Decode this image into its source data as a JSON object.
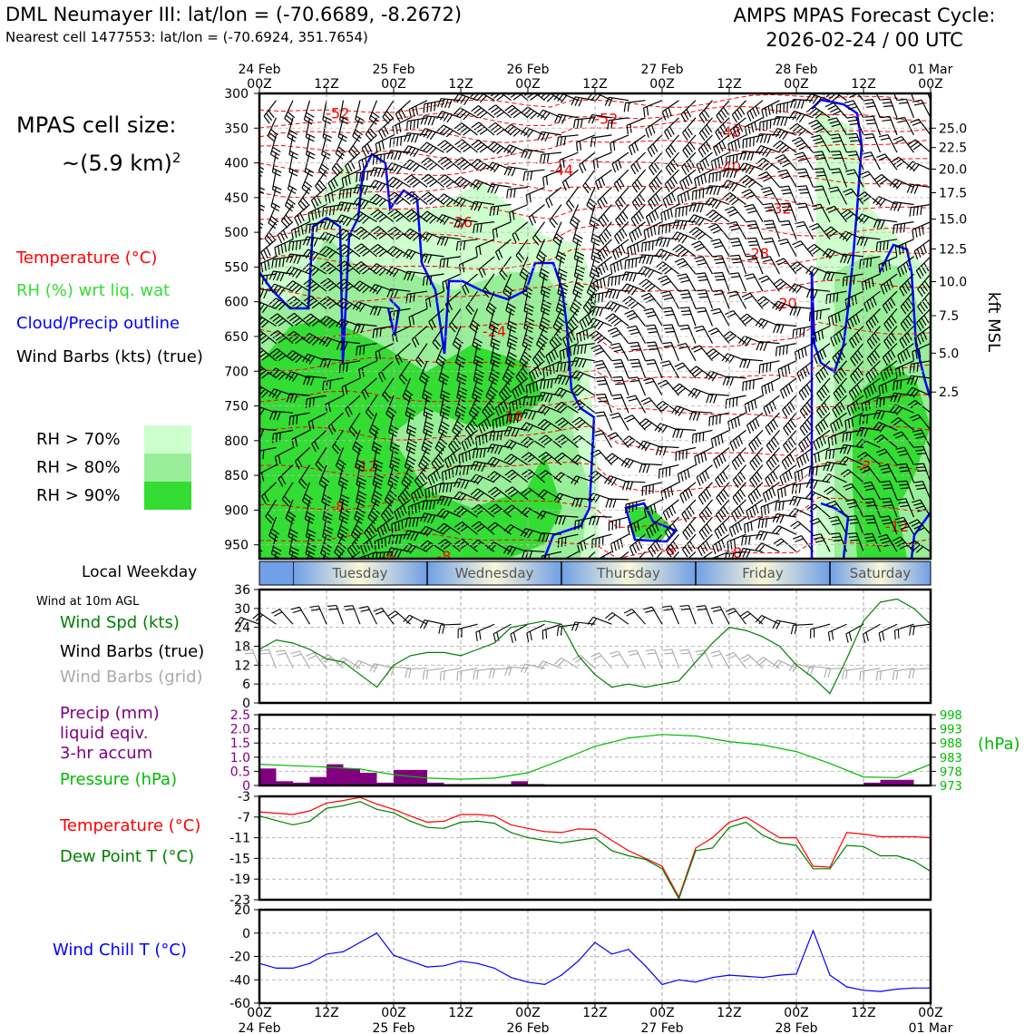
{
  "header": {
    "title_left": "DML Neumayer III: lat/lon = (-70.6689, -8.2672)",
    "subtitle_left": "Nearest cell 1477553: lat/lon = (-70.6924, 351.7654)",
    "title_right_line1": "AMPS MPAS Forecast Cycle:",
    "title_right_line2": "2026-02-24 / 00 UTC"
  },
  "cell_size": {
    "line1": "MPAS cell size:",
    "line2": "~(5.9 km)",
    "sup": "2"
  },
  "legend": {
    "temperature": "Temperature (°C)",
    "rh": "RH (%) wrt liq. wat",
    "cloud": "Cloud/Precip outline",
    "wind": "Wind Barbs (kts) (true)",
    "rh70": "RH > 70%",
    "rh80": "RH > 80%",
    "rh90": "RH > 90%",
    "colors": {
      "temp": "#ff0000",
      "rh": "#33dd33",
      "cloud": "#0000ff",
      "rh70": "#ccffcc",
      "rh80": "#99ee99",
      "rh90": "#33dd33"
    }
  },
  "time_axis": {
    "top_days": [
      "24 Feb",
      "25 Feb",
      "26 Feb",
      "27 Feb",
      "28 Feb",
      "01 Mar"
    ],
    "tick_labels": [
      "00Z",
      "12Z",
      "00Z",
      "12Z",
      "00Z",
      "12Z",
      "00Z",
      "12Z",
      "00Z",
      "12Z",
      "00Z"
    ],
    "bottom_days": [
      "24 Feb",
      "25 Feb",
      "26 Feb",
      "27 Feb",
      "28 Feb",
      "01 Mar"
    ]
  },
  "weekday": {
    "label": "Local Weekday",
    "days": [
      "Tuesday",
      "Wednesday",
      "Thursday",
      "Friday",
      "Saturday"
    ]
  },
  "chart_data": [
    {
      "type": "heatmap",
      "name": "time-height cross section",
      "ylabel_left": "hPa",
      "ylabel_right": "kft MSL",
      "pressure_ticks": [
        300,
        350,
        400,
        450,
        500,
        550,
        600,
        650,
        700,
        750,
        800,
        850,
        900,
        950
      ],
      "kft_ticks": [
        "25.0",
        "22.5",
        "20.0",
        "17.5",
        "15.0",
        "12.5",
        "10.0",
        "7.5",
        "5.0",
        "2.5"
      ],
      "kft_pressures": [
        350,
        378,
        409,
        443,
        481,
        524,
        571,
        620,
        674,
        730
      ],
      "ylim": [
        300,
        970
      ],
      "xlim_hours": [
        0,
        120
      ],
      "temp_contour_labels": [
        {
          "t": 14,
          "p": 328,
          "label": "-52"
        },
        {
          "t": 62,
          "p": 336,
          "label": "-52"
        },
        {
          "t": 84,
          "p": 355,
          "label": "-48"
        },
        {
          "t": 54,
          "p": 410,
          "label": "-44"
        },
        {
          "t": 84,
          "p": 405,
          "label": "-40"
        },
        {
          "t": 93,
          "p": 465,
          "label": "-32"
        },
        {
          "t": 36,
          "p": 485,
          "label": "-36"
        },
        {
          "t": 89,
          "p": 530,
          "label": "-28"
        },
        {
          "t": 94,
          "p": 602,
          "label": "-20"
        },
        {
          "t": 42,
          "p": 642,
          "label": "-24"
        },
        {
          "t": 45,
          "p": 764,
          "label": "-16"
        },
        {
          "t": 19,
          "p": 836,
          "label": "-12"
        },
        {
          "t": 108,
          "p": 836,
          "label": "-8"
        },
        {
          "t": 14,
          "p": 894,
          "label": "-8"
        },
        {
          "t": 23,
          "p": 966,
          "label": "-4"
        },
        {
          "t": 33,
          "p": 966,
          "label": "-8"
        },
        {
          "t": 73,
          "p": 957,
          "label": "-8"
        },
        {
          "t": 85,
          "p": 961,
          "label": "-8"
        },
        {
          "t": 114,
          "p": 923,
          "label": "-12"
        }
      ]
    },
    {
      "type": "line",
      "name": "wind speed at 10m",
      "title": "Wind at 10m AGL",
      "label_speed": "Wind Spd (kts)",
      "label_barbs_true": "Wind Barbs (true)",
      "label_barbs_grid": "Wind Barbs (grid)",
      "yticks": [
        "0",
        "6",
        "12",
        "18",
        "24",
        "30",
        "36"
      ],
      "ylim": [
        0,
        36
      ],
      "x_hours": [
        0,
        3,
        6,
        9,
        12,
        15,
        18,
        21,
        24,
        27,
        30,
        33,
        36,
        39,
        42,
        45,
        48,
        51,
        54,
        57,
        60,
        63,
        66,
        69,
        72,
        75,
        78,
        81,
        84,
        87,
        90,
        93,
        96,
        99,
        102,
        105,
        108,
        111,
        114,
        117,
        120
      ],
      "values": [
        17,
        20,
        19,
        17,
        14,
        13,
        9,
        5,
        12,
        15,
        16,
        16,
        15,
        17,
        19,
        24,
        25,
        26,
        25,
        15,
        9,
        5,
        6,
        5,
        6,
        7,
        13,
        19,
        24,
        23,
        21,
        18,
        12,
        8,
        3,
        14,
        26,
        32,
        33,
        30,
        25
      ],
      "color": "#008000"
    },
    {
      "type": "bar",
      "name": "precipitation and pressure",
      "label_precip_1": "Precip (mm)",
      "label_precip_2": "liquid eqiv.",
      "label_precip_3": "3-hr accum",
      "label_pressure": "Pressure (hPa)",
      "ylabel_right": "(hPa)",
      "precip_yticks": [
        "0",
        "0.5",
        "1.0",
        "1.5",
        "2.0",
        "2.5"
      ],
      "precip_ylim": [
        0,
        2.5
      ],
      "pressure_yticks": [
        "973",
        "978",
        "983",
        "988",
        "993",
        "998"
      ],
      "pressure_ylim": [
        973,
        998
      ],
      "precip_x_hours": [
        0,
        3,
        6,
        9,
        12,
        15,
        18,
        21,
        24,
        27,
        30,
        33,
        36,
        39,
        42,
        45,
        48,
        51,
        54,
        57,
        60,
        63,
        66,
        69,
        72,
        75,
        78,
        81,
        84,
        87,
        90,
        93,
        96,
        99,
        102,
        105,
        108,
        111,
        114,
        117
      ],
      "precip_values": [
        0.6,
        0.15,
        0.1,
        0.3,
        0.75,
        0.6,
        0.45,
        0.1,
        0.55,
        0.55,
        0.1,
        0.05,
        0.05,
        0.05,
        0.05,
        0.15,
        0.05,
        0,
        0,
        0,
        0,
        0,
        0,
        0,
        0,
        0,
        0,
        0,
        0,
        0,
        0,
        0,
        0,
        0,
        0,
        0,
        0.1,
        0.2,
        0.2,
        0
      ],
      "pressure_x_hours": [
        0,
        6,
        12,
        18,
        24,
        30,
        36,
        42,
        48,
        54,
        60,
        66,
        72,
        78,
        84,
        90,
        96,
        102,
        108,
        114,
        120
      ],
      "pressure_values": [
        980.5,
        980,
        979.5,
        978.8,
        976.8,
        975.6,
        975.2,
        975.6,
        977.5,
        982,
        986.8,
        989.8,
        991,
        990.5,
        988.5,
        987.3,
        985,
        980.8,
        976,
        975.8,
        980.5
      ],
      "precip_color": "#800080",
      "pressure_color": "#00bb00"
    },
    {
      "type": "line",
      "name": "temperature and dew point",
      "label_temp": "Temperature (°C)",
      "label_dew": "Dew Point T (°C)",
      "yticks": [
        "-3",
        "-7",
        "-11",
        "-15",
        "-19",
        "-23"
      ],
      "ylim": [
        -23,
        -3
      ],
      "x_hours": [
        0,
        6,
        9,
        12,
        15,
        18,
        21,
        24,
        27,
        30,
        33,
        36,
        39,
        42,
        45,
        48,
        51,
        54,
        57,
        60,
        63,
        66,
        69,
        72,
        75,
        78,
        81,
        84,
        87,
        90,
        93,
        96,
        99,
        102,
        105,
        108,
        111,
        114,
        117,
        120
      ],
      "temperature": [
        -6.0,
        -6.5,
        -5.8,
        -4.3,
        -3.8,
        -3.2,
        -4.5,
        -5.5,
        -6.8,
        -8.0,
        -7.8,
        -6.5,
        -6.5,
        -6.8,
        -8.5,
        -9.2,
        -9.8,
        -10.0,
        -9.3,
        -9.4,
        -11.5,
        -13.5,
        -15.0,
        -16.5,
        -22.5,
        -13.0,
        -11.0,
        -8.0,
        -7.0,
        -9.0,
        -11.0,
        -11.0,
        -16.5,
        -16.7,
        -10.0,
        -10.3,
        -10.8,
        -10.8,
        -10.8,
        -11.0
      ],
      "dew_point": [
        -6.8,
        -8.5,
        -7.8,
        -5.3,
        -4.8,
        -4.0,
        -5.5,
        -6.2,
        -7.8,
        -9.0,
        -9.2,
        -8.0,
        -7.8,
        -8.2,
        -10.0,
        -11.0,
        -11.5,
        -12.0,
        -11.5,
        -11.0,
        -13.5,
        -14.5,
        -15.2,
        -17.0,
        -22.8,
        -13.5,
        -13.0,
        -9.0,
        -8.0,
        -10.5,
        -12.0,
        -12.5,
        -17.0,
        -17.0,
        -12.5,
        -12.7,
        -14.5,
        -14.5,
        -15.5,
        -17.5
      ],
      "temp_color": "#ff0000",
      "dew_color": "#008000"
    },
    {
      "type": "line",
      "name": "wind chill",
      "label": "Wind Chill T (°C)",
      "yticks": [
        "20",
        "0",
        "-20",
        "-40",
        "-60"
      ],
      "ylim": [
        -60,
        20
      ],
      "x_hours": [
        0,
        3,
        6,
        9,
        12,
        15,
        18,
        21,
        24,
        27,
        30,
        33,
        36,
        39,
        42,
        45,
        48,
        51,
        54,
        57,
        60,
        63,
        66,
        69,
        72,
        75,
        78,
        81,
        84,
        87,
        90,
        93,
        96,
        99,
        102,
        105,
        108,
        111,
        114,
        117,
        120
      ],
      "values": [
        -26,
        -30,
        -30,
        -26,
        -18,
        -16,
        -8,
        0,
        -19,
        -24,
        -29,
        -28,
        -24,
        -26,
        -30,
        -38,
        -42,
        -44,
        -36,
        -24,
        -8,
        -18,
        -14,
        -28,
        -44,
        -40,
        -42,
        -38,
        -36,
        -37,
        -38,
        -36,
        -35,
        2,
        -36,
        -46,
        -49,
        -50,
        -48,
        -47,
        -47
      ],
      "color": "#0000ff"
    }
  ]
}
